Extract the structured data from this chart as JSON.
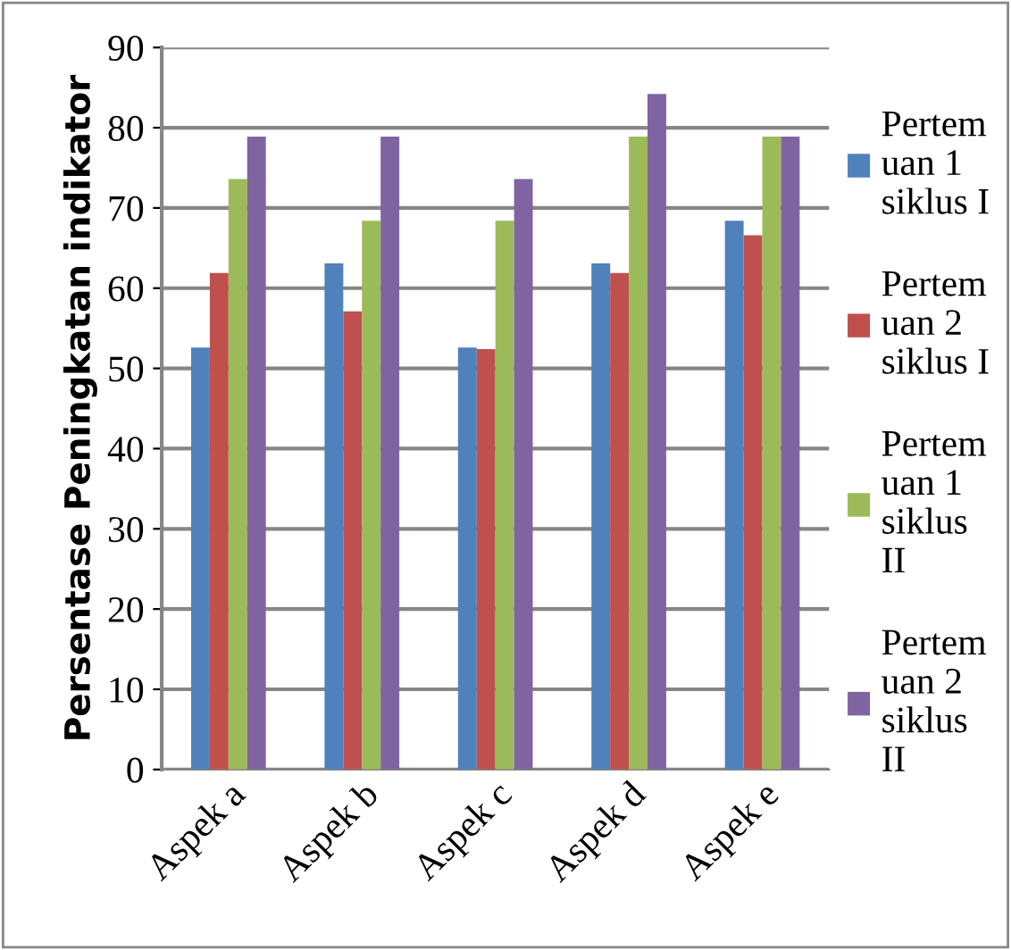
{
  "chart_data": {
    "type": "bar",
    "ylabel": "Persentase Peningkatan indikator",
    "categories": [
      "Aspek a",
      "Aspek b",
      "Aspek c",
      "Aspek d",
      "Aspek e"
    ],
    "series": [
      {
        "name": "Pertem\nuan 1\nsiklus I",
        "color": "#4f81bd",
        "values": [
          52.6,
          63.1,
          52.6,
          63.1,
          68.4
        ]
      },
      {
        "name": "Pertem\nuan 2\nsiklus I",
        "color": "#c0504d",
        "values": [
          61.9,
          57.1,
          52.4,
          61.9,
          66.6
        ]
      },
      {
        "name": "Pertem\nuan 1\nsiklus\nII",
        "color": "#9bbb59",
        "values": [
          73.6,
          68.4,
          68.4,
          78.9,
          78.9
        ]
      },
      {
        "name": "Pertem\nuan 2\nsiklus\nII",
        "color": "#8064a2",
        "values": [
          78.9,
          78.9,
          73.6,
          84.2,
          78.9
        ]
      }
    ],
    "ylim": [
      0,
      90
    ],
    "yticks": [
      0,
      10,
      20,
      30,
      40,
      50,
      60,
      70,
      80,
      90
    ],
    "grid": "y",
    "legend": "right"
  }
}
